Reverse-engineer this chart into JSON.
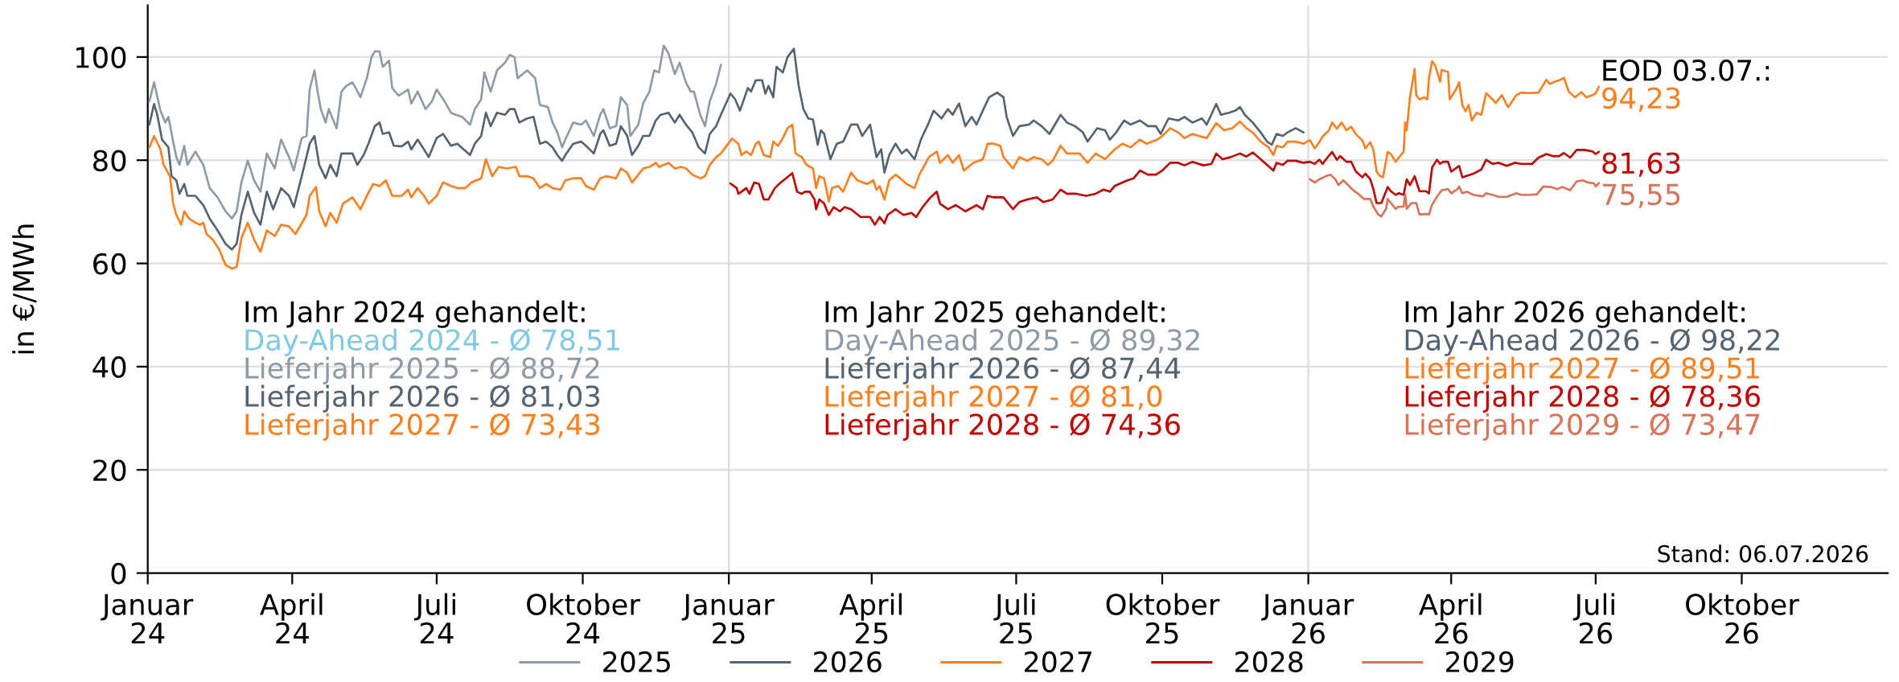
{
  "chart_data": {
    "type": "line",
    "ylabel": "in €/MWh",
    "xlim": [
      "2024-01-01",
      "2027-01-01"
    ],
    "ylim": [
      0,
      110
    ],
    "xticks": [
      {
        "value": "2024-01-01",
        "label": "Januar\n24"
      },
      {
        "value": "2024-04-01",
        "label": "April\n24"
      },
      {
        "value": "2024-07-01",
        "label": "Juli\n24"
      },
      {
        "value": "2024-10-01",
        "label": "Oktober\n24"
      },
      {
        "value": "2025-01-01",
        "label": "Januar\n25"
      },
      {
        "value": "2025-04-01",
        "label": "April\n25"
      },
      {
        "value": "2025-07-01",
        "label": "Juli\n25"
      },
      {
        "value": "2025-10-01",
        "label": "Oktober\n25"
      },
      {
        "value": "2026-01-01",
        "label": "Januar\n26"
      },
      {
        "value": "2026-04-01",
        "label": "April\n26"
      },
      {
        "value": "2026-07-01",
        "label": "Juli\n26"
      },
      {
        "value": "2026-10-01",
        "label": "Oktober\n26"
      }
    ],
    "yticks": [
      0,
      20,
      40,
      60,
      80,
      100
    ],
    "grid": "y",
    "legend": "bottom",
    "ref_lines": [
      {
        "axis": "x",
        "value": "2025-01-01",
        "color": "#dcdcdc"
      },
      {
        "axis": "x",
        "value": "2026-01-01",
        "color": "#dcdcdc"
      }
    ],
    "series": [
      {
        "name": "2025",
        "color": "#8e9ba7",
        "x": [
          "2024-01-02",
          "2024-01-05",
          "2024-01-09",
          "2024-01-12",
          "2024-01-14",
          "2024-01-17",
          "2024-01-19",
          "2024-01-21",
          "2024-01-24",
          "2024-01-26",
          "2024-01-31",
          "2024-02-05",
          "2024-02-09",
          "2024-02-14",
          "2024-02-19",
          "2024-02-23",
          "2024-02-26",
          "2024-02-29",
          "2024-03-04",
          "2024-03-08",
          "2024-03-12",
          "2024-03-16",
          "2024-03-21",
          "2024-03-25",
          "2024-03-30",
          "2024-04-02",
          "2024-04-07",
          "2024-04-10",
          "2024-04-12",
          "2024-04-15",
          "2024-04-17",
          "2024-04-19",
          "2024-04-22",
          "2024-04-24",
          "2024-04-29",
          "2024-05-02",
          "2024-05-05",
          "2024-05-09",
          "2024-05-14",
          "2024-05-18",
          "2024-05-21",
          "2024-05-23",
          "2024-05-26",
          "2024-05-28",
          "2024-06-01",
          "2024-06-03",
          "2024-06-07",
          "2024-06-13",
          "2024-06-15",
          "2024-06-19",
          "2024-06-24",
          "2024-06-28",
          "2024-07-01",
          "2024-07-06",
          "2024-07-10",
          "2024-07-13",
          "2024-07-17",
          "2024-07-22",
          "2024-07-25",
          "2024-07-29",
          "2024-07-31",
          "2024-08-04",
          "2024-08-08",
          "2024-08-13",
          "2024-08-16",
          "2024-08-19",
          "2024-08-21",
          "2024-08-27",
          "2024-09-01",
          "2024-09-04",
          "2024-09-09",
          "2024-09-12",
          "2024-09-15",
          "2024-09-18",
          "2024-09-20",
          "2024-09-25",
          "2024-09-30",
          "2024-10-03",
          "2024-10-08",
          "2024-10-12",
          "2024-10-14",
          "2024-10-18",
          "2024-10-22",
          "2024-10-25",
          "2024-10-29",
          "2024-10-31",
          "2024-11-05",
          "2024-11-08",
          "2024-11-12",
          "2024-11-15",
          "2024-11-18",
          "2024-11-21",
          "2024-11-24",
          "2024-11-28",
          "2024-12-01",
          "2024-12-05",
          "2024-12-08",
          "2024-12-10",
          "2024-12-14",
          "2024-12-17",
          "2024-12-20",
          "2024-12-24",
          "2024-12-27"
        ],
        "values": [
          91.4,
          95.1,
          89.6,
          87.3,
          88.4,
          83.6,
          80.6,
          79.1,
          82.8,
          79.1,
          81.7,
          79.1,
          74.6,
          72.8,
          70.1,
          68.7,
          70.1,
          75.7,
          79.9,
          76.1,
          73.9,
          81.3,
          78.4,
          84.0,
          80.6,
          78.0,
          84.3,
          84.7,
          93.7,
          97.4,
          93.3,
          89.9,
          87.3,
          89.9,
          86.2,
          93.3,
          94.4,
          95.1,
          92.2,
          95.9,
          100.0,
          101.1,
          101.1,
          98.1,
          99.3,
          94.0,
          92.5,
          93.7,
          91.0,
          93.3,
          89.9,
          91.4,
          93.7,
          91.4,
          89.2,
          88.8,
          88.4,
          86.9,
          89.9,
          91.8,
          97.0,
          93.3,
          97.4,
          98.9,
          100.4,
          100.0,
          95.9,
          97.4,
          95.9,
          90.7,
          90.3,
          87.3,
          85.4,
          82.5,
          84.0,
          87.3,
          86.9,
          87.7,
          84.7,
          88.8,
          89.9,
          86.2,
          86.6,
          92.2,
          90.7,
          84.7,
          86.9,
          91.0,
          93.3,
          97.4,
          97.0,
          102.2,
          100.7,
          96.7,
          98.9,
          95.1,
          93.3,
          93.3,
          88.8,
          86.6,
          91.4,
          94.8,
          98.5
        ]
      },
      {
        "name": "2026",
        "color": "#546371",
        "x": [
          "2024-01-02",
          "2024-01-05",
          "2024-01-07",
          "2024-01-10",
          "2024-01-14",
          "2024-01-16",
          "2024-01-19",
          "2024-01-21",
          "2024-01-24",
          "2024-01-26",
          "2024-01-31",
          "2024-02-05",
          "2024-02-09",
          "2024-02-14",
          "2024-02-19",
          "2024-02-23",
          "2024-02-26",
          "2024-02-29",
          "2024-03-04",
          "2024-03-08",
          "2024-03-12",
          "2024-03-16",
          "2024-03-20",
          "2024-03-25",
          "2024-03-30",
          "2024-04-02",
          "2024-04-07",
          "2024-04-12",
          "2024-04-15",
          "2024-04-18",
          "2024-04-22",
          "2024-04-25",
          "2024-04-29",
          "2024-05-02",
          "2024-05-05",
          "2024-05-09",
          "2024-05-12",
          "2024-05-16",
          "2024-05-19",
          "2024-05-23",
          "2024-05-26",
          "2024-05-28",
          "2024-06-01",
          "2024-06-04",
          "2024-06-09",
          "2024-06-13",
          "2024-06-15",
          "2024-06-19",
          "2024-06-23",
          "2024-06-26",
          "2024-07-01",
          "2024-07-05",
          "2024-07-10",
          "2024-07-14",
          "2024-07-18",
          "2024-07-22",
          "2024-07-25",
          "2024-07-29",
          "2024-08-01",
          "2024-08-04",
          "2024-08-08",
          "2024-08-13",
          "2024-08-16",
          "2024-08-19",
          "2024-08-22",
          "2024-08-27",
          "2024-08-31",
          "2024-09-04",
          "2024-09-08",
          "2024-09-12",
          "2024-09-15",
          "2024-09-18",
          "2024-09-20",
          "2024-09-25",
          "2024-09-30",
          "2024-10-03",
          "2024-10-08",
          "2024-10-12",
          "2024-10-14",
          "2024-10-18",
          "2024-10-22",
          "2024-10-25",
          "2024-10-29",
          "2024-11-01",
          "2024-11-05",
          "2024-11-08",
          "2024-11-12",
          "2024-11-16",
          "2024-11-19",
          "2024-11-24",
          "2024-11-28",
          "2024-12-01",
          "2024-12-05",
          "2024-12-09",
          "2024-12-13",
          "2024-12-17",
          "2024-12-20",
          "2024-12-24",
          "2024-12-27",
          "2025-01-02",
          "2025-01-05",
          "2025-01-08",
          "2025-01-13",
          "2025-01-15",
          "2025-01-18",
          "2025-01-22",
          "2025-01-24",
          "2025-01-26",
          "2025-01-29",
          "2025-01-31",
          "2025-02-04",
          "2025-02-07",
          "2025-02-11",
          "2025-02-14",
          "2025-02-17",
          "2025-02-20",
          "2025-02-23",
          "2025-02-26",
          "2025-02-28",
          "2025-03-02",
          "2025-03-06",
          "2025-03-10",
          "2025-03-14",
          "2025-03-19",
          "2025-03-23",
          "2025-03-26",
          "2025-03-31",
          "2025-04-04",
          "2025-04-07",
          "2025-04-09",
          "2025-04-12",
          "2025-04-16",
          "2025-04-20",
          "2025-04-23",
          "2025-04-28",
          "2025-05-02",
          "2025-05-07",
          "2025-05-10",
          "2025-05-15",
          "2025-05-19",
          "2025-05-22",
          "2025-05-26",
          "2025-05-30",
          "2025-06-03",
          "2025-06-06",
          "2025-06-11",
          "2025-06-14",
          "2025-06-19",
          "2025-06-23",
          "2025-06-25",
          "2025-06-29",
          "2025-07-03",
          "2025-07-09",
          "2025-07-12",
          "2025-07-17",
          "2025-07-22",
          "2025-07-29",
          "2025-08-02",
          "2025-08-07",
          "2025-08-12",
          "2025-08-15",
          "2025-08-21",
          "2025-08-26",
          "2025-08-29",
          "2025-09-02",
          "2025-09-07",
          "2025-09-11",
          "2025-09-17",
          "2025-09-22",
          "2025-09-27",
          "2025-09-30",
          "2025-10-05",
          "2025-10-11",
          "2025-10-15",
          "2025-10-20",
          "2025-10-26",
          "2025-10-29",
          "2025-11-04",
          "2025-11-07",
          "2025-11-12",
          "2025-11-16",
          "2025-11-19",
          "2025-11-22",
          "2025-11-27",
          "2025-12-02",
          "2025-12-06",
          "2025-12-09",
          "2025-12-12",
          "2025-12-16",
          "2025-12-19",
          "2025-12-24",
          "2025-12-29"
        ],
        "values": [
          86.9,
          90.9,
          88.8,
          84.0,
          82.5,
          76.9,
          76.1,
          73.5,
          75.4,
          73.1,
          73.1,
          71.3,
          68.7,
          66.4,
          63.8,
          62.7,
          63.8,
          69.4,
          73.9,
          69.8,
          67.5,
          73.9,
          70.5,
          74.6,
          73.1,
          70.9,
          76.9,
          83.2,
          84.7,
          79.1,
          76.5,
          79.1,
          76.9,
          81.3,
          81.3,
          81.3,
          79.1,
          81.0,
          83.2,
          86.6,
          87.3,
          85.1,
          85.4,
          82.8,
          82.7,
          83.6,
          82.1,
          84.0,
          82.1,
          80.6,
          84.3,
          85.1,
          82.8,
          83.2,
          82.1,
          81.0,
          83.2,
          84.7,
          89.2,
          86.6,
          89.2,
          88.8,
          89.9,
          89.9,
          87.3,
          88.1,
          88.4,
          83.2,
          83.6,
          82.5,
          81.0,
          79.9,
          81.0,
          83.2,
          83.6,
          82.8,
          81.3,
          85.1,
          85.8,
          82.8,
          83.2,
          86.6,
          84.7,
          81.0,
          82.8,
          84.7,
          84.7,
          87.7,
          88.8,
          89.2,
          87.3,
          88.8,
          86.9,
          85.4,
          82.5,
          81.3,
          85.1,
          86.6,
          88.8,
          92.9,
          91.8,
          89.6,
          94.0,
          93.3,
          95.5,
          95.5,
          92.9,
          94.4,
          92.2,
          98.1,
          97.0,
          100.0,
          101.6,
          94.4,
          89.9,
          88.1,
          87.9,
          83.0,
          85.8,
          85.1,
          80.2,
          83.2,
          83.6,
          86.9,
          86.9,
          84.7,
          86.9,
          80.6,
          82.1,
          77.6,
          81.0,
          83.2,
          81.3,
          82.1,
          80.2,
          84.0,
          87.3,
          89.6,
          88.1,
          89.9,
          88.8,
          91.0,
          86.6,
          88.4,
          86.9,
          90.3,
          92.2,
          93.1,
          92.2,
          88.4,
          84.7,
          86.6,
          86.9,
          87.7,
          86.6,
          85.1,
          88.8,
          87.3,
          86.6,
          85.4,
          83.6,
          86.2,
          85.8,
          84.0,
          85.4,
          87.7,
          86.9,
          87.7,
          86.6,
          86.6,
          85.1,
          88.1,
          87.7,
          88.4,
          87.3,
          88.1,
          86.9,
          90.9,
          88.8,
          89.2,
          89.6,
          90.3,
          88.8,
          87.3,
          85.4,
          83.6,
          83.0,
          85.1,
          84.7,
          85.4,
          86.2,
          85.4
        ]
      },
      {
        "name": "2027",
        "color": "#ff7f1f",
        "x": [
          "2024-01-02",
          "2024-01-05",
          "2024-01-09",
          "2024-01-11",
          "2024-01-15",
          "2024-01-17",
          "2024-01-19",
          "2024-01-22",
          "2024-01-24",
          "2024-01-27",
          "2024-01-31",
          "2024-02-03",
          "2024-02-05",
          "2024-02-07",
          "2024-02-11",
          "2024-02-15",
          "2024-02-19",
          "2024-02-23",
          "2024-02-26",
          "2024-02-29",
          "2024-03-04",
          "2024-03-08",
          "2024-03-12",
          "2024-03-16",
          "2024-03-21",
          "2024-03-25",
          "2024-03-30",
          "2024-04-03",
          "2024-04-10",
          "2024-04-12",
          "2024-04-16",
          "2024-04-18",
          "2024-04-22",
          "2024-04-25",
          "2024-04-29",
          "2024-05-03",
          "2024-05-09",
          "2024-05-14",
          "2024-05-18",
          "2024-05-22",
          "2024-05-26",
          "2024-05-30",
          "2024-06-03",
          "2024-06-09",
          "2024-06-13",
          "2024-06-15",
          "2024-06-19",
          "2024-06-23",
          "2024-06-26",
          "2024-07-01",
          "2024-07-05",
          "2024-07-10",
          "2024-07-14",
          "2024-07-19",
          "2024-07-23",
          "2024-07-29",
          "2024-08-01",
          "2024-08-05",
          "2024-08-09",
          "2024-08-14",
          "2024-08-20",
          "2024-08-22",
          "2024-08-27",
          "2024-08-31",
          "2024-09-04",
          "2024-09-08",
          "2024-09-12",
          "2024-09-17",
          "2024-09-20",
          "2024-09-25",
          "2024-09-30",
          "2024-10-03",
          "2024-10-08",
          "2024-10-12",
          "2024-10-16",
          "2024-10-22",
          "2024-10-25",
          "2024-10-29",
          "2024-11-01",
          "2024-11-05",
          "2024-11-08",
          "2024-11-12",
          "2024-11-16",
          "2024-11-18",
          "2024-11-24",
          "2024-11-28",
          "2024-12-02",
          "2024-12-05",
          "2024-12-09",
          "2024-12-14",
          "2024-12-17",
          "2024-12-20",
          "2024-12-24",
          "2024-12-27",
          "2025-01-03",
          "2025-01-07",
          "2025-01-09",
          "2025-01-12",
          "2025-01-15",
          "2025-01-18",
          "2025-01-20",
          "2025-01-23",
          "2025-01-27",
          "2025-01-29",
          "2025-02-01",
          "2025-02-04",
          "2025-02-07",
          "2025-02-10",
          "2025-02-12",
          "2025-02-16",
          "2025-02-19",
          "2025-02-23",
          "2025-02-25",
          "2025-02-27",
          "2025-03-02",
          "2025-03-05",
          "2025-03-07",
          "2025-03-11",
          "2025-03-14",
          "2025-03-19",
          "2025-03-23",
          "2025-03-29",
          "2025-04-02",
          "2025-04-04",
          "2025-04-06",
          "2025-04-09",
          "2025-04-12",
          "2025-04-16",
          "2025-04-19",
          "2025-04-23",
          "2025-04-28",
          "2025-05-01",
          "2025-05-07",
          "2025-05-12",
          "2025-05-14",
          "2025-05-19",
          "2025-05-22",
          "2025-05-26",
          "2025-05-29",
          "2025-06-04",
          "2025-06-10",
          "2025-06-13",
          "2025-06-17",
          "2025-06-21",
          "2025-06-23",
          "2025-06-29",
          "2025-07-03",
          "2025-07-08",
          "2025-07-12",
          "2025-07-17",
          "2025-07-21",
          "2025-07-24",
          "2025-07-29",
          "2025-08-02",
          "2025-08-10",
          "2025-08-15",
          "2025-08-20",
          "2025-08-26",
          "2025-09-01",
          "2025-09-06",
          "2025-09-11",
          "2025-09-17",
          "2025-09-21",
          "2025-09-28",
          "2025-10-01",
          "2025-10-06",
          "2025-10-11",
          "2025-10-15",
          "2025-10-20",
          "2025-10-24",
          "2025-10-29",
          "2025-11-04",
          "2025-11-09",
          "2025-11-14",
          "2025-11-19",
          "2025-11-23",
          "2025-11-27",
          "2025-12-02",
          "2025-12-07",
          "2025-12-10",
          "2025-12-12",
          "2025-12-16",
          "2025-12-19",
          "2025-12-24",
          "2025-12-29",
          "2026-01-02",
          "2026-01-05",
          "2026-01-08",
          "2026-01-10",
          "2026-01-14",
          "2026-01-16",
          "2026-01-19",
          "2026-01-22",
          "2026-01-25",
          "2026-01-28",
          "2026-01-31",
          "2026-02-04",
          "2026-02-06",
          "2026-02-09",
          "2026-02-11",
          "2026-02-13",
          "2026-02-15",
          "2026-02-17",
          "2026-02-20",
          "2026-02-22",
          "2026-02-25",
          "2026-02-27",
          "2026-03-02",
          "2026-03-03",
          "2026-03-04",
          "2026-03-06",
          "2026-03-09",
          "2026-03-10",
          "2026-03-12",
          "2026-03-15",
          "2026-03-17",
          "2026-03-18",
          "2026-03-20",
          "2026-03-22",
          "2026-03-25",
          "2026-03-26",
          "2026-03-30",
          "2026-03-31",
          "2026-04-04",
          "2026-04-06",
          "2026-04-08",
          "2026-04-10",
          "2026-04-12",
          "2026-04-14",
          "2026-04-17",
          "2026-04-20",
          "2026-04-23",
          "2026-04-27",
          "2026-04-29",
          "2026-05-03",
          "2026-05-06",
          "2026-05-07",
          "2026-05-12",
          "2026-05-15",
          "2026-05-20",
          "2026-05-26",
          "2026-05-31",
          "2026-06-02",
          "2026-06-05",
          "2026-06-09",
          "2026-06-11",
          "2026-06-14",
          "2026-06-18",
          "2026-06-22",
          "2026-06-25",
          "2026-06-29",
          "2026-07-01",
          "2026-07-03"
        ],
        "values": [
          82.5,
          84.7,
          82.1,
          79.1,
          76.9,
          71.6,
          69.4,
          67.5,
          70.1,
          68.7,
          67.9,
          67.5,
          67.9,
          65.7,
          64.6,
          62.7,
          59.7,
          59.0,
          59.3,
          64.9,
          67.9,
          64.6,
          62.3,
          66.4,
          65.3,
          67.5,
          67.2,
          65.7,
          69.4,
          73.1,
          74.8,
          70.1,
          67.2,
          69.8,
          67.9,
          71.6,
          72.8,
          70.5,
          73.1,
          75.4,
          75.0,
          76.1,
          73.1,
          73.1,
          74.3,
          72.8,
          74.6,
          73.1,
          71.6,
          73.1,
          75.7,
          75.0,
          74.6,
          74.6,
          75.7,
          76.5,
          80.2,
          76.9,
          78.7,
          78.4,
          78.7,
          76.9,
          76.9,
          76.5,
          74.6,
          75.4,
          74.6,
          74.3,
          76.1,
          76.5,
          76.5,
          75.0,
          74.3,
          76.5,
          76.9,
          76.5,
          78.4,
          77.6,
          75.7,
          77.2,
          78.4,
          78.7,
          79.5,
          78.7,
          79.5,
          78.4,
          78.7,
          78.4,
          77.2,
          76.5,
          76.9,
          79.1,
          80.6,
          81.3,
          84.2,
          83.2,
          81.0,
          81.7,
          81.0,
          83.2,
          83.6,
          81.0,
          80.6,
          83.6,
          82.8,
          84.3,
          86.2,
          86.9,
          81.3,
          80.6,
          79.1,
          78.4,
          74.6,
          76.9,
          76.5,
          72.0,
          74.6,
          75.0,
          73.9,
          77.6,
          76.1,
          75.4,
          76.1,
          74.3,
          75.0,
          72.4,
          76.1,
          77.2,
          76.5,
          75.4,
          74.6,
          77.2,
          80.6,
          81.7,
          79.5,
          81.0,
          79.5,
          81.0,
          78.0,
          79.5,
          80.2,
          83.2,
          83.2,
          82.8,
          80.6,
          78.4,
          80.6,
          79.9,
          80.6,
          80.2,
          79.1,
          79.9,
          82.8,
          81.3,
          81.3,
          79.5,
          81.3,
          80.2,
          82.1,
          83.2,
          82.5,
          84.0,
          83.2,
          84.0,
          84.7,
          86.2,
          85.4,
          84.3,
          85.1,
          84.7,
          84.3,
          87.2,
          85.8,
          86.2,
          87.5,
          86.2,
          85.4,
          83.6,
          82.5,
          81.0,
          82.8,
          82.5,
          83.6,
          83.6,
          83.2,
          83.9,
          82.3,
          83.5,
          84.6,
          85.8,
          87.3,
          86.1,
          87.3,
          85.8,
          86.5,
          85.0,
          83.9,
          82.3,
          83.5,
          82.0,
          77.8,
          77.0,
          76.7,
          81.6,
          81.2,
          79.7,
          80.5,
          81.6,
          87.3,
          85.8,
          92.2,
          97.7,
          92.6,
          91.8,
          92.2,
          91.8,
          96.0,
          99.2,
          98.3,
          95.2,
          97.5,
          97.1,
          91.8,
          93.7,
          95.1,
          90.7,
          89.5,
          90.7,
          87.7,
          89.2,
          88.8,
          93.0,
          91.8,
          91.1,
          92.6,
          90.7,
          90.3,
          92.6,
          93.1,
          93.0,
          93.1,
          95.6,
          94.8,
          95.2,
          95.6,
          96.0,
          93.3,
          92.2,
          93.2,
          92.2,
          92.6,
          93.0,
          94.23
        ]
      },
      {
        "name": "2028",
        "color": "#c00000",
        "x": [
          "2025-01-02",
          "2025-01-06",
          "2025-01-07",
          "2025-01-09",
          "2025-01-12",
          "2025-01-14",
          "2025-01-17",
          "2025-01-20",
          "2025-01-23",
          "2025-01-26",
          "2025-01-30",
          "2025-02-02",
          "2025-02-06",
          "2025-02-10",
          "2025-02-13",
          "2025-02-16",
          "2025-02-18",
          "2025-02-21",
          "2025-02-24",
          "2025-02-25",
          "2025-02-27",
          "2025-03-02",
          "2025-03-05",
          "2025-03-08",
          "2025-03-12",
          "2025-03-15",
          "2025-03-19",
          "2025-03-25",
          "2025-03-31",
          "2025-04-03",
          "2025-04-06",
          "2025-04-09",
          "2025-04-11",
          "2025-04-16",
          "2025-04-21",
          "2025-04-26",
          "2025-04-29",
          "2025-05-03",
          "2025-05-08",
          "2025-05-12",
          "2025-05-14",
          "2025-05-19",
          "2025-05-24",
          "2025-05-30",
          "2025-06-06",
          "2025-06-10",
          "2025-06-13",
          "2025-06-17",
          "2025-06-23",
          "2025-06-29",
          "2025-07-03",
          "2025-07-08",
          "2025-07-14",
          "2025-07-18",
          "2025-07-24",
          "2025-07-29",
          "2025-08-02",
          "2025-08-08",
          "2025-08-14",
          "2025-08-20",
          "2025-08-25",
          "2025-08-29",
          "2025-09-01",
          "2025-09-09",
          "2025-09-13",
          "2025-09-17",
          "2025-09-22",
          "2025-09-27",
          "2025-10-01",
          "2025-10-06",
          "2025-10-11",
          "2025-10-15",
          "2025-10-20",
          "2025-10-27",
          "2025-11-01",
          "2025-11-04",
          "2025-11-08",
          "2025-11-13",
          "2025-11-19",
          "2025-11-23",
          "2025-11-27",
          "2025-12-02",
          "2025-12-06",
          "2025-12-10",
          "2025-12-12",
          "2025-12-16",
          "2025-12-19",
          "2025-12-24",
          "2025-12-29",
          "2026-01-02",
          "2026-01-05",
          "2026-01-08",
          "2026-01-10",
          "2026-01-13",
          "2026-01-16",
          "2026-01-19",
          "2026-01-21",
          "2026-01-25",
          "2026-01-28",
          "2026-01-31",
          "2026-02-04",
          "2026-02-06",
          "2026-02-09",
          "2026-02-11",
          "2026-02-13",
          "2026-02-16",
          "2026-02-20",
          "2026-02-22",
          "2026-02-25",
          "2026-02-27",
          "2026-03-02",
          "2026-03-04",
          "2026-03-06",
          "2026-03-09",
          "2026-03-12",
          "2026-03-16",
          "2026-03-18",
          "2026-03-20",
          "2026-03-23",
          "2026-03-25",
          "2026-03-27",
          "2026-03-30",
          "2026-04-01",
          "2026-04-06",
          "2026-04-08",
          "2026-04-11",
          "2026-04-15",
          "2026-04-20",
          "2026-04-23",
          "2026-04-27",
          "2026-05-01",
          "2026-05-06",
          "2026-05-11",
          "2026-05-15",
          "2026-05-22",
          "2026-05-26",
          "2026-05-31",
          "2026-06-04",
          "2026-06-08",
          "2026-06-11",
          "2026-06-15",
          "2026-06-19",
          "2026-06-24",
          "2026-06-29",
          "2026-07-01",
          "2026-07-03"
        ],
        "values": [
          75.5,
          74.6,
          73.5,
          73.9,
          74.6,
          73.5,
          75.7,
          75.4,
          72.4,
          72.4,
          74.6,
          75.5,
          76.5,
          77.5,
          73.9,
          73.5,
          73.9,
          73.9,
          72.4,
          70.5,
          72.4,
          71.6,
          69.4,
          70.9,
          70.1,
          70.9,
          70.5,
          69.0,
          69.0,
          67.5,
          69.0,
          67.8,
          69.4,
          70.5,
          69.4,
          69.8,
          69.0,
          70.9,
          72.8,
          73.9,
          71.6,
          70.5,
          71.3,
          70.1,
          71.3,
          70.5,
          73.1,
          72.8,
          72.8,
          70.5,
          71.9,
          72.4,
          72.8,
          71.9,
          72.4,
          74.3,
          73.5,
          73.5,
          73.1,
          73.5,
          74.3,
          73.9,
          75.0,
          76.1,
          76.5,
          78.0,
          77.2,
          77.2,
          78.0,
          79.5,
          79.5,
          79.0,
          79.7,
          79.0,
          79.3,
          81.3,
          80.2,
          80.6,
          81.3,
          80.7,
          81.5,
          80.2,
          79.1,
          78.0,
          79.5,
          79.1,
          79.9,
          79.9,
          79.5,
          79.7,
          79.3,
          80.1,
          79.3,
          80.5,
          81.6,
          80.1,
          80.8,
          79.7,
          79.7,
          77.8,
          76.7,
          77.4,
          76.3,
          74.4,
          71.7,
          71.7,
          74.8,
          74.0,
          73.3,
          73.6,
          73.3,
          76.3,
          75.2,
          76.9,
          74.0,
          74.0,
          73.6,
          78.6,
          80.1,
          79.3,
          79.7,
          79.7,
          77.8,
          78.9,
          76.7,
          77.0,
          77.4,
          78.2,
          80.1,
          79.3,
          79.5,
          78.9,
          79.5,
          79.3,
          79.3,
          80.5,
          81.2,
          80.8,
          80.8,
          81.4,
          80.5,
          82.0,
          82.0,
          81.7,
          81.2,
          81.63
        ]
      },
      {
        "name": "2029",
        "color": "#d8735a",
        "x": [
          "2026-01-02",
          "2026-01-05",
          "2026-01-08",
          "2026-01-12",
          "2026-01-15",
          "2026-01-18",
          "2026-01-20",
          "2026-01-23",
          "2026-01-26",
          "2026-01-30",
          "2026-02-01",
          "2026-02-05",
          "2026-02-09",
          "2026-02-11",
          "2026-02-14",
          "2026-02-16",
          "2026-02-19",
          "2026-02-20",
          "2026-02-22",
          "2026-02-25",
          "2026-02-27",
          "2026-03-02",
          "2026-03-03",
          "2026-03-04",
          "2026-03-07",
          "2026-03-10",
          "2026-03-12",
          "2026-03-16",
          "2026-03-18",
          "2026-03-20",
          "2026-03-23",
          "2026-03-26",
          "2026-03-30",
          "2026-04-01",
          "2026-04-05",
          "2026-04-06",
          "2026-04-08",
          "2026-04-11",
          "2026-04-15",
          "2026-04-21",
          "2026-04-23",
          "2026-04-27",
          "2026-05-01",
          "2026-05-06",
          "2026-05-12",
          "2026-05-15",
          "2026-05-20",
          "2026-05-25",
          "2026-05-29",
          "2026-06-03",
          "2026-06-07",
          "2026-06-10",
          "2026-06-15",
          "2026-06-19",
          "2026-06-23",
          "2026-06-26",
          "2026-06-30",
          "2026-07-01",
          "2026-07-03"
        ],
        "values": [
          76.3,
          75.7,
          76.3,
          76.9,
          77.2,
          76.3,
          75.2,
          76.1,
          75.2,
          74.0,
          73.6,
          72.5,
          72.5,
          71.0,
          69.5,
          69.1,
          70.6,
          72.5,
          71.7,
          70.6,
          71.0,
          71.0,
          73.4,
          70.6,
          71.7,
          71.7,
          69.5,
          69.6,
          69.5,
          71.4,
          72.9,
          74.2,
          74.4,
          73.6,
          74.4,
          74.9,
          73.6,
          73.9,
          73.3,
          73.0,
          73.6,
          73.3,
          72.9,
          72.9,
          73.6,
          73.3,
          73.3,
          73.4,
          74.9,
          74.8,
          74.4,
          74.8,
          74.2,
          75.9,
          76.1,
          75.7,
          75.5,
          74.9,
          75.55
        ]
      }
    ],
    "annotations": [
      "Im Jahr 2024 gehandelt:",
      "Day-Ahead 2024 - Ø 78,51",
      "Lieferjahr 2025 - Ø 88,72",
      "Lieferjahr 2026 - Ø 81,03",
      "Lieferjahr 2027 - Ø 73,43",
      "Im Jahr 2025 gehandelt:",
      "Day-Ahead 2025 - Ø 89,32",
      "Lieferjahr 2026 - Ø 87,44",
      "Lieferjahr 2027 - Ø 81,0",
      "Lieferjahr 2028 - Ø 74,36",
      "Im Jahr 2026 gehandelt:",
      "Day-Ahead 2026 - Ø 98,22",
      "Lieferjahr 2027 - Ø 89,51",
      "Lieferjahr 2028 - Ø 78,36",
      "Lieferjahr 2029 - Ø 73,47",
      "EOD 03.07.:",
      {
        "text": "94,23",
        "x": "2026-07-03",
        "y": 94.23
      },
      {
        "text": "81,63",
        "x": "2026-07-03",
        "y": 81.63
      },
      {
        "text": "75,55",
        "x": "2026-07-03",
        "y": 75.55
      },
      "Stand: 06.07.2026"
    ]
  }
}
